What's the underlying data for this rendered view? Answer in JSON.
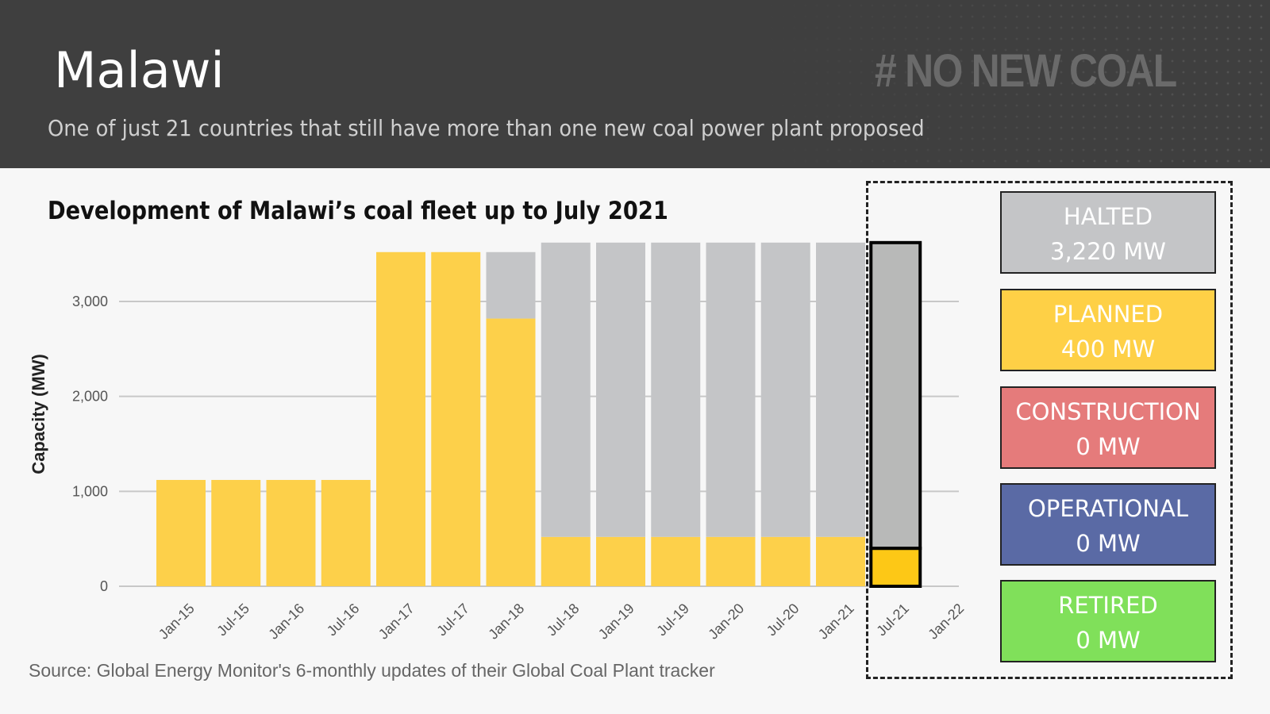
{
  "header": {
    "country": "Malawi",
    "tagline": "# NO NEW COAL",
    "subtitle": "One of just 21 countries that still have more than one new coal power plant proposed"
  },
  "source": "Source: Global Energy Monitor's 6-monthly updates of their Global Coal Plant tracker",
  "legend": [
    {
      "label": "HALTED",
      "value": "3,220 MW",
      "color": "#c4c5c7"
    },
    {
      "label": "PLANNED",
      "value": "400 MW",
      "color": "#fed046"
    },
    {
      "label": "CONSTRUCTION",
      "value": "0 MW",
      "color": "#e57b7b"
    },
    {
      "label": "OPERATIONAL",
      "value": "0 MW",
      "color": "#5a6aa5"
    },
    {
      "label": "RETIRED",
      "value": "0 MW",
      "color": "#80e05a"
    }
  ],
  "chart_data": {
    "type": "bar",
    "stacked": true,
    "title": "Development of Malawi’s coal fleet up to July 2021",
    "xlabel": "",
    "ylabel": "Capacity (MW)",
    "ylim": [
      0,
      3620
    ],
    "yticks": [
      0,
      1000,
      2000,
      3000
    ],
    "ytick_labels": [
      "0",
      "1,000",
      "2,000",
      "3,000"
    ],
    "grid": true,
    "categories": [
      "Jan-15",
      "Jul-15",
      "Jan-16",
      "Jul-16",
      "Jan-17",
      "Jul-17",
      "Jan-18",
      "Jul-18",
      "Jan-19",
      "Jul-19",
      "Jan-20",
      "Jul-20",
      "Jan-21",
      "Jul-21",
      "Jan-22"
    ],
    "highlight_category": "Jul-21",
    "series": [
      {
        "name": "Planned",
        "color": "#fdd04a",
        "values": [
          1120,
          1120,
          1120,
          1120,
          3520,
          3520,
          2820,
          520,
          520,
          520,
          520,
          520,
          520,
          400,
          0
        ]
      },
      {
        "name": "Halted",
        "color": "#c4c5c7",
        "values": [
          0,
          0,
          0,
          0,
          0,
          0,
          700,
          3100,
          3100,
          3100,
          3100,
          3100,
          3100,
          3220,
          0
        ]
      }
    ]
  }
}
